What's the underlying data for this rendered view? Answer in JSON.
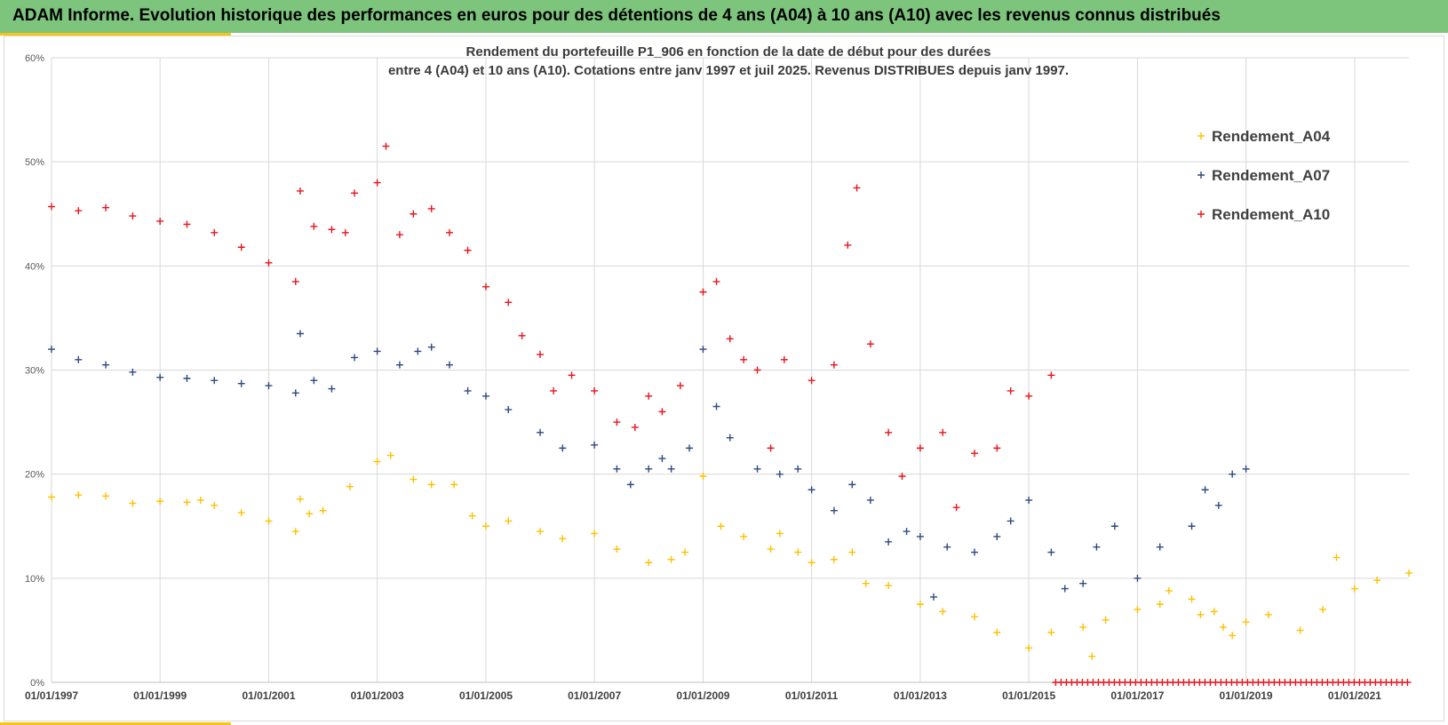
{
  "header": {
    "title": "ADAM Informe. Evolution historique des performances en euros pour des détentions de 4 ans (A04) à 10 ans (A10) avec les revenus connus distribués"
  },
  "colors": {
    "header_bg": "#7dc47d",
    "accent": "#f5c518",
    "A04": "#ffc000",
    "A07": "#2f4a7f",
    "A10": "#e8141c"
  },
  "chart_data": {
    "type": "scatter",
    "marker": "plus",
    "title_line1": "Rendement du portefeuille P1_906 en fonction de la date de début pour des durées",
    "title_line2": "entre 4 (A04) et 10 ans (A10). Cotations entre janv 1997 et juil 2025. Revenus DISTRIBUES depuis janv 1997.",
    "xlim": [
      "1997-01-01",
      "2022-01-01"
    ],
    "ylim": [
      0,
      0.6
    ],
    "y_format": "percent",
    "y_ticks": [
      "0%",
      "10%",
      "20%",
      "30%",
      "40%",
      "50%",
      "60%"
    ],
    "x_tick_labels": [
      "01/01/1997",
      "01/01/1999",
      "01/01/2001",
      "01/01/2003",
      "01/01/2005",
      "01/01/2007",
      "01/01/2009",
      "01/01/2011",
      "01/01/2013",
      "01/01/2015",
      "01/01/2017",
      "01/01/2019",
      "01/01/2021"
    ],
    "grid": true,
    "legend_position": "top-right",
    "series": [
      {
        "name": "Rendement_A04",
        "color": "#ffc000",
        "points": [
          [
            "1997-01-01",
            0.178
          ],
          [
            "1997-07-01",
            0.18
          ],
          [
            "1998-01-01",
            0.179
          ],
          [
            "1998-07-01",
            0.172
          ],
          [
            "1999-01-01",
            0.174
          ],
          [
            "1999-07-01",
            0.173
          ],
          [
            "1999-10-01",
            0.175
          ],
          [
            "2000-01-01",
            0.17
          ],
          [
            "2000-07-01",
            0.163
          ],
          [
            "2001-01-01",
            0.155
          ],
          [
            "2001-07-01",
            0.145
          ],
          [
            "2001-08-01",
            0.176
          ],
          [
            "2001-10-01",
            0.162
          ],
          [
            "2002-01-01",
            0.165
          ],
          [
            "2002-07-01",
            0.188
          ],
          [
            "2003-01-01",
            0.212
          ],
          [
            "2003-04-01",
            0.218
          ],
          [
            "2003-09-01",
            0.195
          ],
          [
            "2004-01-01",
            0.19
          ],
          [
            "2004-06-01",
            0.19
          ],
          [
            "2004-10-01",
            0.16
          ],
          [
            "2005-01-01",
            0.15
          ],
          [
            "2005-06-01",
            0.155
          ],
          [
            "2006-01-01",
            0.145
          ],
          [
            "2006-06-01",
            0.138
          ],
          [
            "2007-01-01",
            0.143
          ],
          [
            "2007-06-01",
            0.128
          ],
          [
            "2008-01-01",
            0.115
          ],
          [
            "2008-06-01",
            0.118
          ],
          [
            "2008-09-01",
            0.125
          ],
          [
            "2009-01-01",
            0.198
          ],
          [
            "2009-05-01",
            0.15
          ],
          [
            "2009-10-01",
            0.14
          ],
          [
            "2010-04-01",
            0.128
          ],
          [
            "2010-06-01",
            0.143
          ],
          [
            "2010-10-01",
            0.125
          ],
          [
            "2011-01-01",
            0.115
          ],
          [
            "2011-06-01",
            0.118
          ],
          [
            "2011-10-01",
            0.125
          ],
          [
            "2012-01-01",
            0.095
          ],
          [
            "2012-06-01",
            0.093
          ],
          [
            "2013-01-01",
            0.075
          ],
          [
            "2013-06-01",
            0.068
          ],
          [
            "2014-01-01",
            0.063
          ],
          [
            "2014-06-01",
            0.048
          ],
          [
            "2015-01-01",
            0.033
          ],
          [
            "2015-06-01",
            0.048
          ],
          [
            "2016-01-01",
            0.053
          ],
          [
            "2016-03-01",
            0.025
          ],
          [
            "2016-06-01",
            0.06
          ],
          [
            "2017-01-01",
            0.07
          ],
          [
            "2017-06-01",
            0.075
          ],
          [
            "2017-08-01",
            0.088
          ],
          [
            "2018-01-01",
            0.08
          ],
          [
            "2018-03-01",
            0.065
          ],
          [
            "2018-06-01",
            0.068
          ],
          [
            "2018-08-01",
            0.053
          ],
          [
            "2018-10-01",
            0.045
          ],
          [
            "2019-01-01",
            0.058
          ],
          [
            "2019-06-01",
            0.065
          ],
          [
            "2020-01-01",
            0.05
          ],
          [
            "2020-06-01",
            0.07
          ],
          [
            "2020-09-01",
            0.12
          ],
          [
            "2021-01-01",
            0.09
          ],
          [
            "2021-06-01",
            0.098
          ],
          [
            "2022-01-01",
            0.105
          ]
        ]
      },
      {
        "name": "Rendement_A07",
        "color": "#2f4a7f",
        "points": [
          [
            "1997-01-01",
            0.32
          ],
          [
            "1997-07-01",
            0.31
          ],
          [
            "1998-01-01",
            0.305
          ],
          [
            "1998-07-01",
            0.298
          ],
          [
            "1999-01-01",
            0.293
          ],
          [
            "1999-07-01",
            0.292
          ],
          [
            "2000-01-01",
            0.29
          ],
          [
            "2000-07-01",
            0.287
          ],
          [
            "2001-01-01",
            0.285
          ],
          [
            "2001-07-01",
            0.278
          ],
          [
            "2001-08-01",
            0.335
          ],
          [
            "2001-11-01",
            0.29
          ],
          [
            "2002-03-01",
            0.282
          ],
          [
            "2002-08-01",
            0.312
          ],
          [
            "2003-01-01",
            0.318
          ],
          [
            "2003-06-01",
            0.305
          ],
          [
            "2003-10-01",
            0.318
          ],
          [
            "2004-01-01",
            0.322
          ],
          [
            "2004-05-01",
            0.305
          ],
          [
            "2004-09-01",
            0.28
          ],
          [
            "2005-01-01",
            0.275
          ],
          [
            "2005-06-01",
            0.262
          ],
          [
            "2006-01-01",
            0.24
          ],
          [
            "2006-06-01",
            0.225
          ],
          [
            "2007-01-01",
            0.228
          ],
          [
            "2007-06-01",
            0.205
          ],
          [
            "2007-09-01",
            0.19
          ],
          [
            "2008-01-01",
            0.205
          ],
          [
            "2008-04-01",
            0.215
          ],
          [
            "2008-06-01",
            0.205
          ],
          [
            "2008-10-01",
            0.225
          ],
          [
            "2009-01-01",
            0.32
          ],
          [
            "2009-04-01",
            0.265
          ],
          [
            "2009-07-01",
            0.235
          ],
          [
            "2010-01-01",
            0.205
          ],
          [
            "2010-06-01",
            0.2
          ],
          [
            "2010-10-01",
            0.205
          ],
          [
            "2011-01-01",
            0.185
          ],
          [
            "2011-06-01",
            0.165
          ],
          [
            "2011-10-01",
            0.19
          ],
          [
            "2012-02-01",
            0.175
          ],
          [
            "2012-06-01",
            0.135
          ],
          [
            "2012-10-01",
            0.145
          ],
          [
            "2013-01-01",
            0.14
          ],
          [
            "2013-04-01",
            0.082
          ],
          [
            "2013-07-01",
            0.13
          ],
          [
            "2014-01-01",
            0.125
          ],
          [
            "2014-06-01",
            0.14
          ],
          [
            "2014-09-01",
            0.155
          ],
          [
            "2015-01-01",
            0.175
          ],
          [
            "2015-06-01",
            0.125
          ],
          [
            "2015-09-01",
            0.09
          ],
          [
            "2016-01-01",
            0.095
          ],
          [
            "2016-04-01",
            0.13
          ],
          [
            "2016-08-01",
            0.15
          ],
          [
            "2017-01-01",
            0.1
          ],
          [
            "2017-06-01",
            0.13
          ],
          [
            "2018-01-01",
            0.15
          ],
          [
            "2018-04-01",
            0.185
          ],
          [
            "2018-07-01",
            0.17
          ],
          [
            "2018-10-01",
            0.2
          ],
          [
            "2019-01-01",
            0.205
          ]
        ]
      },
      {
        "name": "Rendement_A10",
        "color": "#e8141c",
        "points": [
          [
            "1997-01-01",
            0.457
          ],
          [
            "1997-07-01",
            0.453
          ],
          [
            "1998-01-01",
            0.456
          ],
          [
            "1998-07-01",
            0.448
          ],
          [
            "1999-01-01",
            0.443
          ],
          [
            "1999-07-01",
            0.44
          ],
          [
            "2000-01-01",
            0.432
          ],
          [
            "2000-07-01",
            0.418
          ],
          [
            "2001-01-01",
            0.403
          ],
          [
            "2001-07-01",
            0.385
          ],
          [
            "2001-08-01",
            0.472
          ],
          [
            "2001-11-01",
            0.438
          ],
          [
            "2002-03-01",
            0.435
          ],
          [
            "2002-06-01",
            0.432
          ],
          [
            "2002-08-01",
            0.47
          ],
          [
            "2003-01-01",
            0.48
          ],
          [
            "2003-03-01",
            0.515
          ],
          [
            "2003-06-01",
            0.43
          ],
          [
            "2003-09-01",
            0.45
          ],
          [
            "2004-01-01",
            0.455
          ],
          [
            "2004-05-01",
            0.432
          ],
          [
            "2004-09-01",
            0.415
          ],
          [
            "2005-01-01",
            0.38
          ],
          [
            "2005-06-01",
            0.365
          ],
          [
            "2005-09-01",
            0.333
          ],
          [
            "2006-01-01",
            0.315
          ],
          [
            "2006-04-01",
            0.28
          ],
          [
            "2006-08-01",
            0.295
          ],
          [
            "2007-01-01",
            0.28
          ],
          [
            "2007-06-01",
            0.25
          ],
          [
            "2007-10-01",
            0.245
          ],
          [
            "2008-01-01",
            0.275
          ],
          [
            "2008-04-01",
            0.26
          ],
          [
            "2008-08-01",
            0.285
          ],
          [
            "2009-01-01",
            0.375
          ],
          [
            "2009-04-01",
            0.385
          ],
          [
            "2009-07-01",
            0.33
          ],
          [
            "2009-10-01",
            0.31
          ],
          [
            "2010-01-01",
            0.3
          ],
          [
            "2010-04-01",
            0.225
          ],
          [
            "2010-07-01",
            0.31
          ],
          [
            "2011-01-01",
            0.29
          ],
          [
            "2011-06-01",
            0.305
          ],
          [
            "2011-09-01",
            0.42
          ],
          [
            "2011-11-01",
            0.475
          ],
          [
            "2012-02-01",
            0.325
          ],
          [
            "2012-06-01",
            0.24
          ],
          [
            "2012-09-01",
            0.198
          ],
          [
            "2013-01-01",
            0.225
          ],
          [
            "2013-06-01",
            0.24
          ],
          [
            "2013-09-01",
            0.168
          ],
          [
            "2014-01-01",
            0.22
          ],
          [
            "2014-06-01",
            0.225
          ],
          [
            "2014-09-01",
            0.28
          ],
          [
            "2015-01-01",
            0.275
          ],
          [
            "2015-06-01",
            0.295
          ]
        ]
      }
    ],
    "zero_band": {
      "series": "Rendement_A10",
      "from": "2015-07-01",
      "to": "2022-01-01",
      "value": 0.0
    }
  }
}
